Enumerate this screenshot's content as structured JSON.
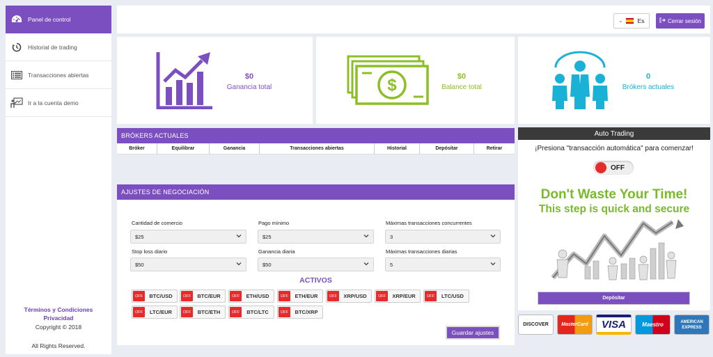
{
  "sidebar": {
    "items": [
      {
        "label": "Panel de control",
        "icon": "dashboard-icon",
        "active": true
      },
      {
        "label": "Historial de trading",
        "icon": "history-icon"
      },
      {
        "label": "Transacciones abiertas",
        "icon": "list-icon"
      },
      {
        "label": "Ir a la cuenta demo",
        "icon": "presentation-icon"
      }
    ],
    "terms": "Términos y Condiciones",
    "privacy": "Privacidad",
    "copyright": "Copyright © 2018",
    "rights": "All Rights Reserved."
  },
  "header": {
    "language": "Es",
    "logout": "Cerrar sesión"
  },
  "stats": [
    {
      "value": "$0",
      "label": "Ganancia total",
      "color": "#7c4fc0"
    },
    {
      "value": "$0",
      "label": "Balance total",
      "color": "#8cbf26"
    },
    {
      "value": "0",
      "label": "Brókers actuales",
      "color": "#1ab1d6"
    }
  ],
  "brokers": {
    "title": "BRÓKERS ACTUALES",
    "columns": [
      "Bróker",
      "Equilibrar",
      "Ganancia",
      "Transacciones abiertas",
      "Historial",
      "Depósitar",
      "Retirar"
    ]
  },
  "settings": {
    "title": "AJUSTES DE NEGOCIACIÓN",
    "fields": [
      {
        "label": "Cantidad de comercio",
        "value": "$25"
      },
      {
        "label": "Pago mínimo",
        "value": "$25"
      },
      {
        "label": "Máximas transacciones concurrentes",
        "value": "3"
      },
      {
        "label": "Stop loss diario",
        "value": "$50"
      },
      {
        "label": "Ganancia diaria",
        "value": "$50"
      },
      {
        "label": "Máximas transacciones diarias",
        "value": "5"
      }
    ],
    "assets_title": "ACTIVOS",
    "off_label": "OFF",
    "assets": [
      "BTC/USD",
      "BTC/EUR",
      "ETH/USD",
      "ETH/EUR",
      "XRP/USD",
      "XRP/EUR",
      "LTC/USD",
      "LTC/EUR",
      "BTC/ETH",
      "BTC/LTC",
      "BTC/XRP"
    ],
    "save": "Guardar ajustes"
  },
  "auto_trading": {
    "title": "Auto Trading",
    "prompt": "¡Presiona \"transacción automática\" para comenzar!",
    "toggle": "OFF",
    "promo_line1": "Don't Waste Your Time!",
    "promo_line2": "This step is quick and secure",
    "deposit": "Depósitar"
  },
  "payments": [
    "DISCOVER",
    "MasterCard",
    "VISA",
    "Maestro",
    "AMERICAN EXPRESS"
  ]
}
